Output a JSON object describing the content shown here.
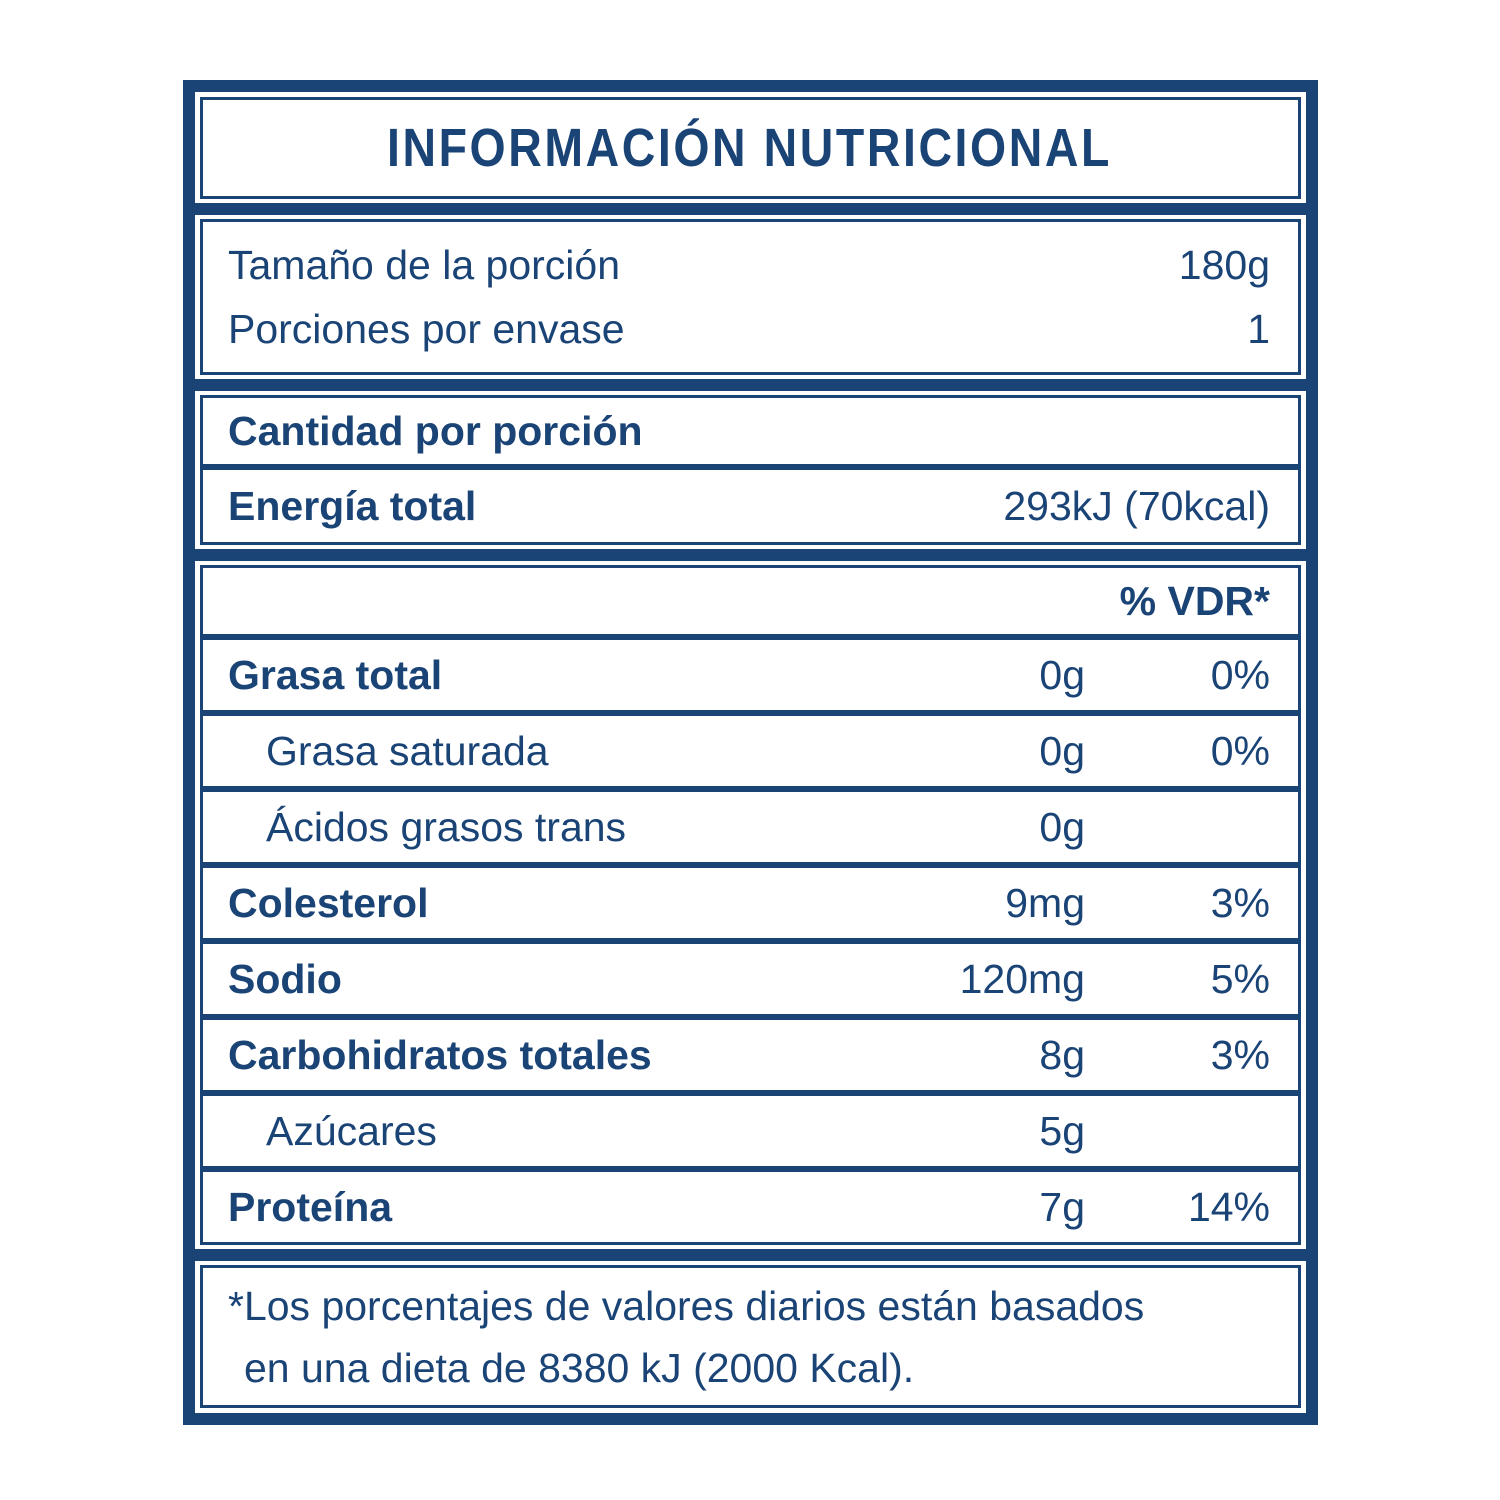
{
  "colors": {
    "navy": "#1a4376",
    "background": "#ffffff"
  },
  "label": {
    "title": "INFORMACIÓN NUTRICIONAL",
    "serving_rows": [
      {
        "name": "Tamaño de la porción",
        "value": "180g"
      },
      {
        "name": "Porciones por envase",
        "value": "1"
      }
    ],
    "section_header": "Cantidad por porción",
    "energy_row": {
      "name": "Energía total",
      "value": "293kJ (70kcal)"
    },
    "dv_header": "% VDR*",
    "nutrient_rows": [
      {
        "name": "Grasa total",
        "amount": "0g",
        "dv": "0%"
      },
      {
        "name": "Grasa saturada",
        "amount": "0g",
        "dv": "0%"
      },
      {
        "name": "Ácidos grasos trans",
        "amount": "0g",
        "dv": ""
      },
      {
        "name": "Colesterol",
        "amount": "9mg",
        "dv": "3%"
      },
      {
        "name": "Sodio",
        "amount": "120mg",
        "dv": "5%"
      },
      {
        "name": "Carbohidratos totales",
        "amount": "8g",
        "dv": "3%"
      },
      {
        "name": "Azúcares",
        "amount": "5g",
        "dv": ""
      },
      {
        "name": "Proteína",
        "amount": "7g",
        "dv": "14%"
      }
    ],
    "footnote": {
      "line1": "*Los porcentajes de valores diarios están basados",
      "line2": "en una dieta de 8380 kJ (2000 Kcal)."
    }
  }
}
